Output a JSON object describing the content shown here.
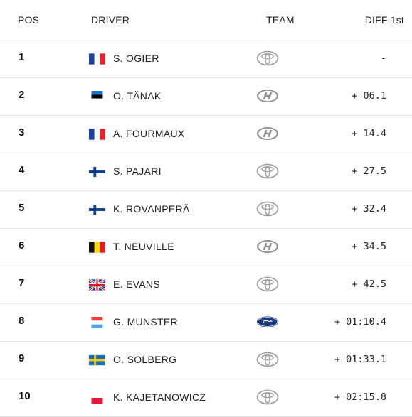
{
  "header": {
    "pos": "POS",
    "driver": "DRIVER",
    "team": "TEAM",
    "diff": "DIFF 1st"
  },
  "rows": [
    {
      "pos": "1",
      "flag": "france",
      "name": "S. OGIER",
      "team": "toyota",
      "diff": "-"
    },
    {
      "pos": "2",
      "flag": "estonia",
      "name": "O. TÄNAK",
      "team": "hyundai",
      "diff": "+ 06.1"
    },
    {
      "pos": "3",
      "flag": "france",
      "name": "A. FOURMAUX",
      "team": "hyundai",
      "diff": "+ 14.4"
    },
    {
      "pos": "4",
      "flag": "finland",
      "name": "S. PAJARI",
      "team": "toyota",
      "diff": "+ 27.5"
    },
    {
      "pos": "5",
      "flag": "finland",
      "name": "K. ROVANPERÄ",
      "team": "toyota",
      "diff": "+ 32.4"
    },
    {
      "pos": "6",
      "flag": "belgium",
      "name": "T. NEUVILLE",
      "team": "hyundai",
      "diff": "+ 34.5"
    },
    {
      "pos": "7",
      "flag": "uk",
      "name": "E. EVANS",
      "team": "toyota",
      "diff": "+ 42.5"
    },
    {
      "pos": "8",
      "flag": "luxembourg",
      "name": "G. MUNSTER",
      "team": "ford",
      "diff": "+ 01:10.4"
    },
    {
      "pos": "9",
      "flag": "sweden",
      "name": "O. SOLBERG",
      "team": "toyota",
      "diff": "+ 01:33.1"
    },
    {
      "pos": "10",
      "flag": "poland",
      "name": "K. KAJETANOWICZ",
      "team": "toyota",
      "diff": "+ 02:15.8"
    }
  ]
}
